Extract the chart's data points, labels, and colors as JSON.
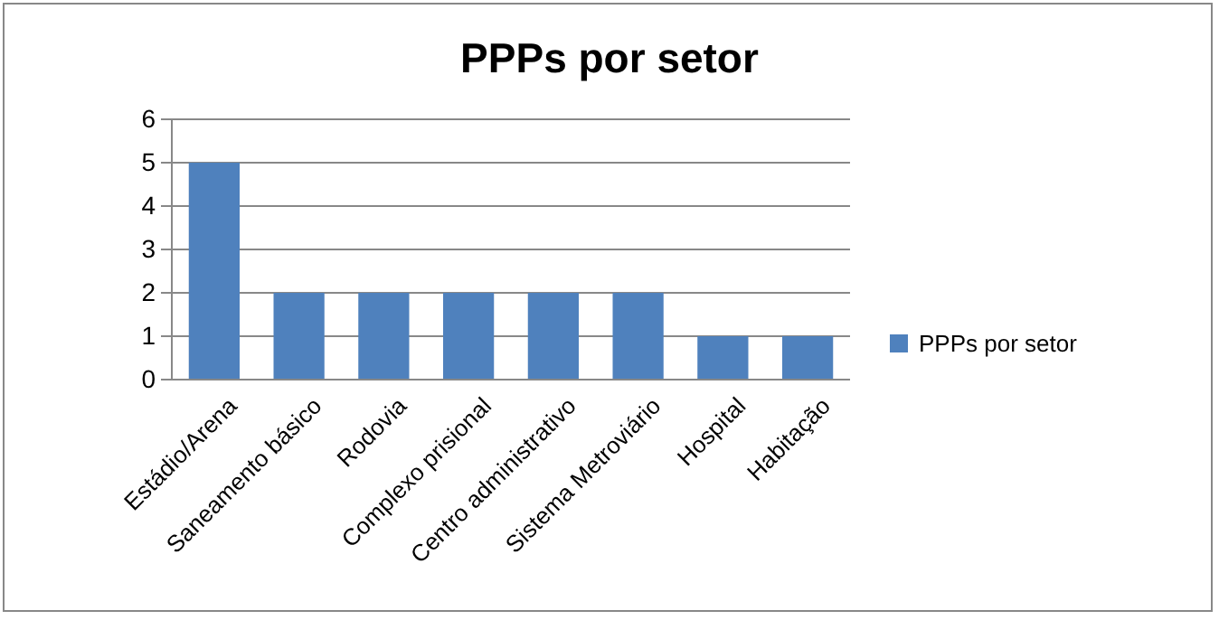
{
  "chart_data": {
    "type": "bar",
    "title": "PPPs por setor",
    "categories": [
      "Estádio/Arena",
      "Saneamento básico",
      "Rodovia",
      "Complexo prisional",
      "Centro administrativo",
      "Sistema Metroviário",
      "Hospital",
      "Habitação"
    ],
    "series": [
      {
        "name": "PPPs por setor",
        "color": "#4f81bd",
        "values": [
          5,
          2,
          2,
          2,
          2,
          2,
          1,
          1
        ]
      }
    ],
    "ylim": [
      0,
      6
    ],
    "yticks": [
      0,
      1,
      2,
      3,
      4,
      5,
      6
    ],
    "grid": "y",
    "legend": "right"
  }
}
